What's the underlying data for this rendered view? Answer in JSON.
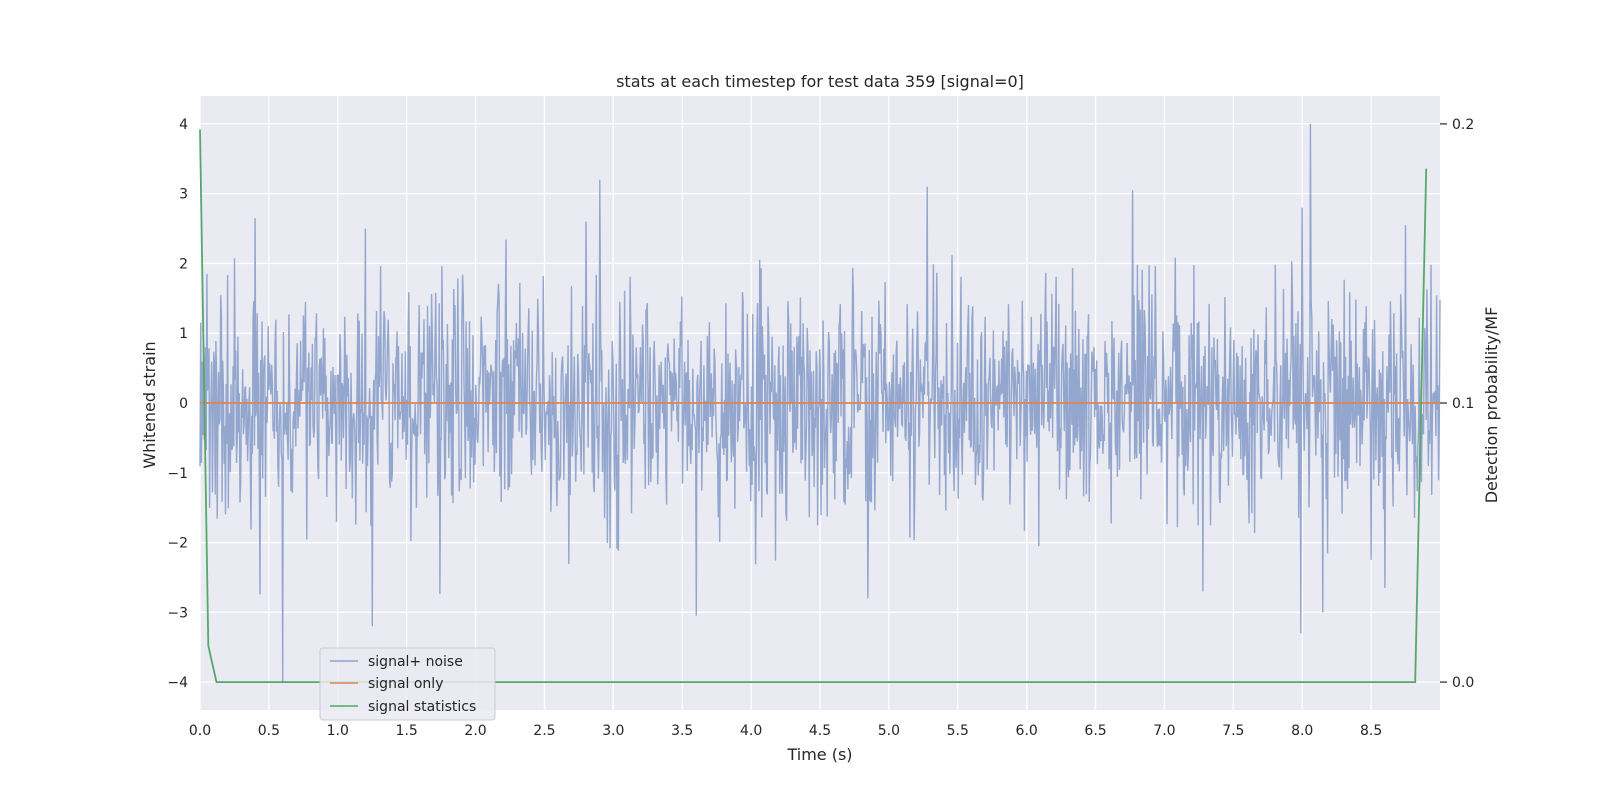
{
  "chart_data": {
    "type": "line",
    "title": "stats at each timestep for test data 359 [signal=0]",
    "xlabel": "Time (s)",
    "ylabel": "Whitened strain",
    "y2label": "Detection probability/MF",
    "xlim": [
      0.0,
      9.0
    ],
    "ylim": [
      -4.4,
      4.4
    ],
    "y2lim": [
      -0.01,
      0.21
    ],
    "grid": true,
    "legend_position": "lower-left",
    "x_ticks": [
      "0.0",
      "0.5",
      "1.0",
      "1.5",
      "2.0",
      "2.5",
      "3.0",
      "3.5",
      "4.0",
      "4.5",
      "5.0",
      "5.5",
      "6.0",
      "6.5",
      "7.0",
      "7.5",
      "8.0",
      "8.5"
    ],
    "x_tick_values": [
      0.0,
      0.5,
      1.0,
      1.5,
      2.0,
      2.5,
      3.0,
      3.5,
      4.0,
      4.5,
      5.0,
      5.5,
      6.0,
      6.5,
      7.0,
      7.5,
      8.0,
      8.5
    ],
    "y_ticks": [
      "4",
      "3",
      "2",
      "1",
      "0",
      "−1",
      "−2",
      "−3",
      "−4"
    ],
    "y_tick_values": [
      4,
      3,
      2,
      1,
      0,
      -1,
      -2,
      -3,
      -4
    ],
    "y2_ticks": [
      "0.2",
      "0.1",
      "0.0"
    ],
    "y2_tick_values": [
      0.2,
      0.1,
      0.0
    ],
    "series": [
      {
        "name": "signal+ noise",
        "color": "#8ea2cb",
        "axis": "left",
        "style": "noise",
        "sample_count": 1800,
        "spikes": [
          {
            "x": 0.6,
            "y": -4.0
          },
          {
            "x": 0.05,
            "y": 1.85
          },
          {
            "x": 0.4,
            "y": 2.65
          },
          {
            "x": 1.25,
            "y": -3.2
          },
          {
            "x": 1.2,
            "y": 2.5
          },
          {
            "x": 2.9,
            "y": 3.2
          },
          {
            "x": 2.8,
            "y": 2.6
          },
          {
            "x": 3.6,
            "y": -3.05
          },
          {
            "x": 4.85,
            "y": -2.8
          },
          {
            "x": 5.28,
            "y": 3.1
          },
          {
            "x": 6.77,
            "y": 3.05
          },
          {
            "x": 7.28,
            "y": -2.7
          },
          {
            "x": 7.99,
            "y": -3.3
          },
          {
            "x": 8.0,
            "y": 2.8
          },
          {
            "x": 8.06,
            "y": 4.0
          },
          {
            "x": 8.6,
            "y": -2.65
          },
          {
            "x": 8.75,
            "y": 2.55
          }
        ]
      },
      {
        "name": "signal only",
        "color": "#dd8452",
        "axis": "left",
        "x": [
          0.0,
          9.0
        ],
        "y": [
          0.0,
          0.0
        ]
      },
      {
        "name": "signal statistics",
        "color": "#55a868",
        "axis": "right",
        "x": [
          0.0,
          0.06,
          0.12,
          8.82,
          8.9
        ],
        "y": [
          0.198,
          0.013,
          0.0,
          0.0,
          0.184
        ]
      }
    ]
  }
}
